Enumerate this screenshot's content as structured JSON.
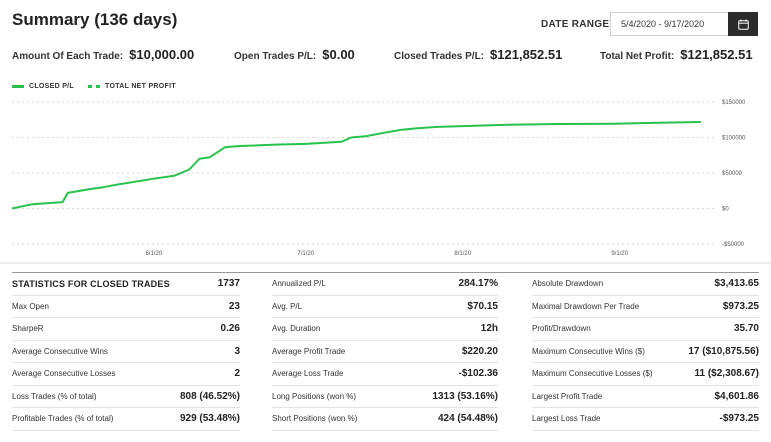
{
  "header": {
    "title": "Summary (136 days)",
    "date_range_label": "DATE RANGE",
    "date_range_value": "5/4/2020 - 9/17/2020",
    "calendar_icon": "calendar-icon"
  },
  "kpis": [
    {
      "label": "Amount Of Each Trade:",
      "value": "$10,000.00"
    },
    {
      "label": "Open Trades P/L:",
      "value": "$0.00"
    },
    {
      "label": "Closed Trades P/L:",
      "value": "$121,852.51"
    },
    {
      "label": "Total Net Profit:",
      "value": "$121,852.51"
    }
  ],
  "legend": {
    "closed": "CLOSED P/L",
    "total": "TOTAL NET PROFIT"
  },
  "chart_data": {
    "type": "line",
    "x": [
      "2020-05-04",
      "2020-05-08",
      "2020-05-14",
      "2020-05-15",
      "2020-05-20",
      "2020-05-22",
      "2020-05-25",
      "2020-06-01",
      "2020-06-05",
      "2020-06-08",
      "2020-06-10",
      "2020-06-12",
      "2020-06-15",
      "2020-06-16",
      "2020-06-18",
      "2020-06-22",
      "2020-06-25",
      "2020-07-01",
      "2020-07-08",
      "2020-07-10",
      "2020-07-13",
      "2020-07-16",
      "2020-07-20",
      "2020-07-23",
      "2020-07-27",
      "2020-08-01",
      "2020-08-10",
      "2020-08-20",
      "2020-08-31",
      "2020-09-10",
      "2020-09-17"
    ],
    "series": [
      {
        "name": "CLOSED P/L",
        "values": [
          0,
          6000,
          9000,
          22000,
          28000,
          30000,
          34000,
          42000,
          46000,
          55000,
          70000,
          72000,
          86000,
          87000,
          88000,
          89000,
          90000,
          91000,
          94000,
          100000,
          102000,
          106000,
          111000,
          113000,
          115000,
          116000,
          118000,
          119000,
          119500,
          121000,
          121852.51
        ]
      }
    ],
    "x_ticks": [
      {
        "label": "6/1/20",
        "x": "2020-06-01"
      },
      {
        "label": "7/1/20",
        "x": "2020-07-01"
      },
      {
        "label": "8/1/20",
        "x": "2020-08-01"
      },
      {
        "label": "9/1/20",
        "x": "2020-09-01"
      }
    ],
    "y_ticks": [
      {
        "label": "$150000",
        "y": 150000
      },
      {
        "label": "$100000",
        "y": 100000
      },
      {
        "label": "$50000",
        "y": 50000
      },
      {
        "label": "$0",
        "y": 0
      },
      {
        "label": "-$50000",
        "y": -50000
      }
    ],
    "ylim": [
      -50000,
      150000
    ],
    "xlim": [
      "2020-05-04",
      "2020-09-20"
    ],
    "grid": true,
    "line_color": "#27c24c"
  },
  "stats": {
    "col1": [
      {
        "k": "STATISTICS FOR CLOSED TRADES",
        "v": "1737"
      },
      {
        "k": "Max Open",
        "v": "23"
      },
      {
        "k": "SharpeR",
        "v": "0.26"
      },
      {
        "k": "Average Consecutive Wins",
        "v": "3"
      },
      {
        "k": "Average Consecutive Losses",
        "v": "2"
      },
      {
        "k": "Loss Trades (% of total)",
        "v": "808 (46.52%)"
      },
      {
        "k": "Profitable Trades (% of total)",
        "v": "929 (53.48%)"
      }
    ],
    "col2": [
      {
        "k": "Annualized P/L",
        "v": "284.17%"
      },
      {
        "k": "Avg. P/L",
        "v": "$70.15"
      },
      {
        "k": "Avg. Duration",
        "v": "12h"
      },
      {
        "k": "Average Profit Trade",
        "v": "$220.20"
      },
      {
        "k": "Average Loss Trade",
        "v": "-$102.36"
      },
      {
        "k": "Long Positions (won %)",
        "v": "1313 (53.16%)"
      },
      {
        "k": "Short Positions (won %)",
        "v": "424 (54.48%)"
      }
    ],
    "col3": [
      {
        "k": "Absolute Drawdown",
        "v": "$3,413.65"
      },
      {
        "k": "Maximal Drawdown Per Trade",
        "v": "$973.25"
      },
      {
        "k": "Profit/Drawdown",
        "v": "35.70"
      },
      {
        "k": "Maximum Consecutive Wins ($)",
        "v": "17 ($10,875.56)"
      },
      {
        "k": "Maximum Consecutive Losses ($)",
        "v": "11 ($2,308.67)"
      },
      {
        "k": "Largest Profit Trade",
        "v": "$4,601.86"
      },
      {
        "k": "Largest Loss Trade",
        "v": "-$973.25"
      }
    ]
  }
}
